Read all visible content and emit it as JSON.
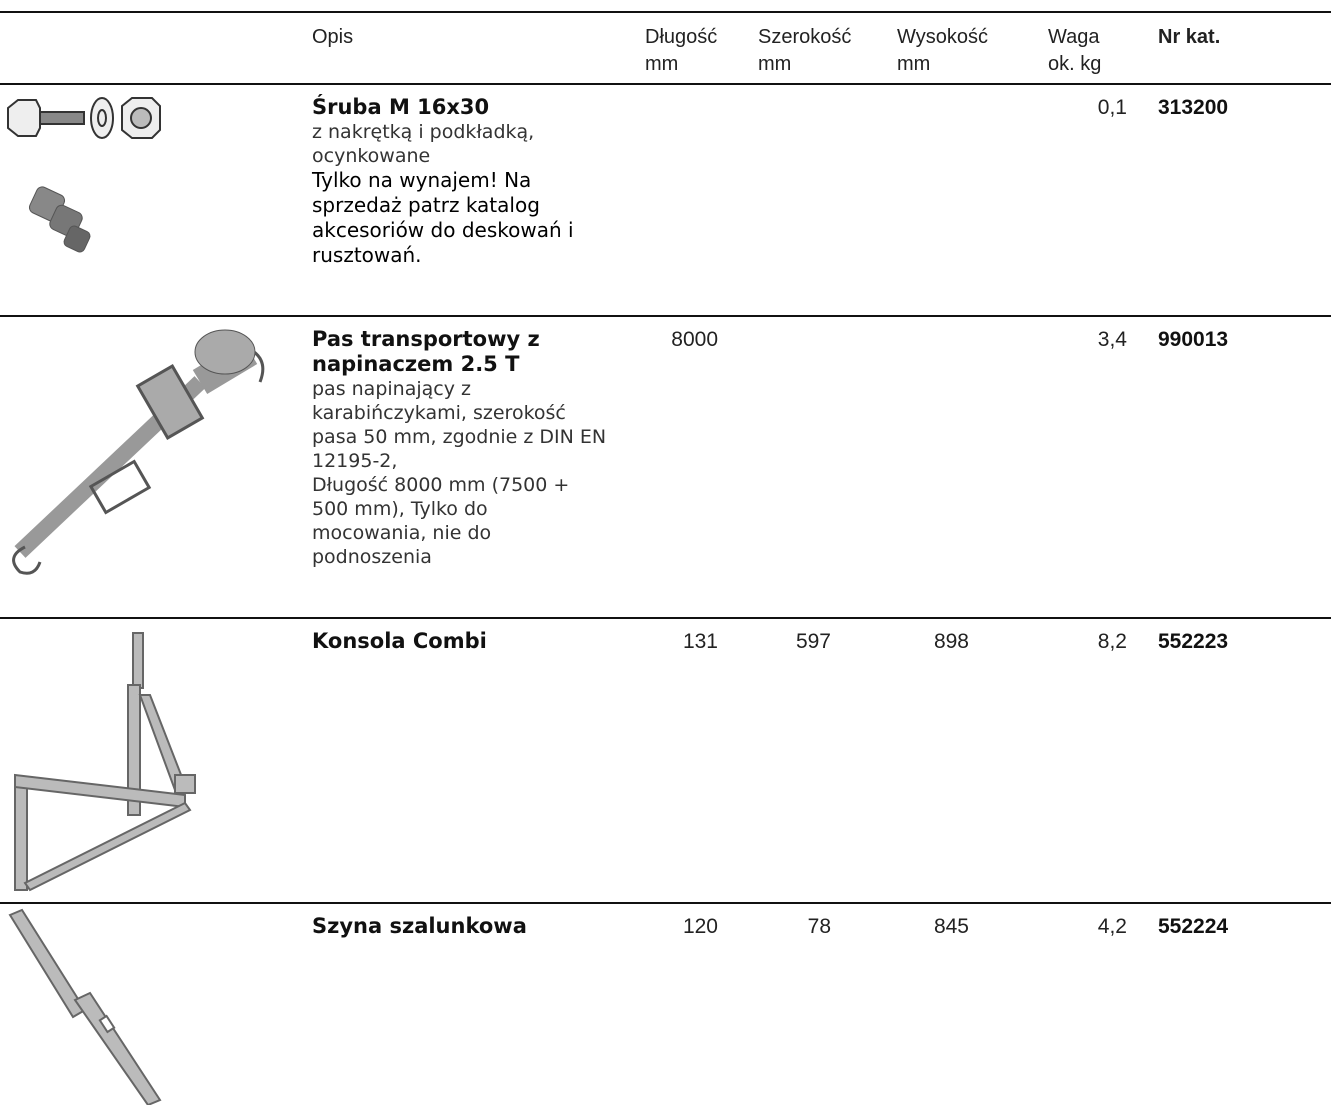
{
  "header": [
    {
      "lines": [
        "Opis"
      ]
    },
    {
      "lines": [
        "Długość",
        "mm"
      ]
    },
    {
      "lines": [
        "Szerokość",
        "mm"
      ]
    },
    {
      "lines": [
        "Wysokość",
        "mm"
      ]
    },
    {
      "lines": [
        "Waga",
        "ok.  kg"
      ]
    },
    {
      "lines": [
        "Nr kat."
      ]
    }
  ],
  "rows": [
    {
      "name": [
        "Śruba M 16x30"
      ],
      "description": [
        "z nakrętką i podkładką,",
        "ocynkowane"
      ],
      "note": [
        "Tylko na wynajem! Na",
        "sprzedaż patrz katalog",
        "akcesoriów do deskowań i",
        "rusztowań."
      ],
      "weight": "0,1",
      "number": "313200"
    },
    {
      "name": [
        "Pas transportowy z",
        "napinaczem 2.5 T"
      ],
      "description": [
        "pas napinający z",
        "karabińczykami, szerokość",
        "pasa 50 mm, zgodnie z DIN EN",
        "12195-2,",
        "Długość 8000 mm (7500 +",
        "500 mm), Tylko do",
        "mocowania, nie do",
        "podnoszenia"
      ],
      "length": "8000",
      "weight": "3,4",
      "number": "990013"
    },
    {
      "name": [
        "Konsola Combi"
      ],
      "length": "131",
      "width": "597",
      "height": "898",
      "weight": "8,2",
      "number": "552223"
    },
    {
      "name": [
        "Szyna szalunkowa"
      ],
      "length": "120",
      "width": "78",
      "height": "845",
      "weight": "4,2",
      "number": "552224"
    }
  ]
}
